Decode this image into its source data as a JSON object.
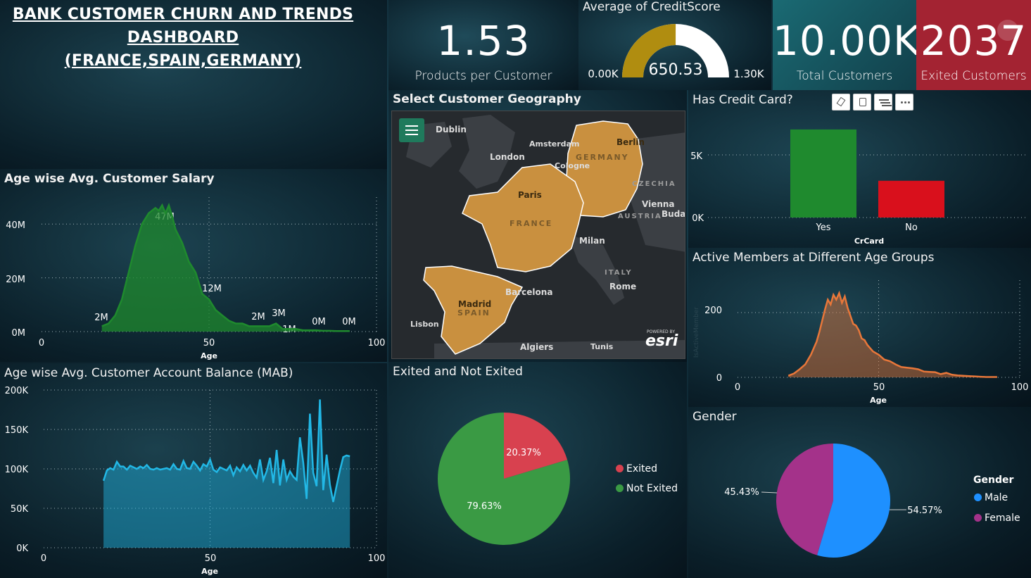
{
  "title": {
    "line1": "BANK CUSTOMER CHURN AND TRENDS ",
    "line2": "DASHBOARD",
    "line3": "(FRANCE,SPAIN,GERMANY)"
  },
  "kpis": {
    "products": {
      "value": "1.53",
      "label": "Products per Customer"
    },
    "credit": {
      "title": "Average of CreditScore",
      "value": "650.53",
      "min": "0.00K",
      "max": "1.30K",
      "fraction": 0.5004
    },
    "total": {
      "value": "10.00K",
      "label": "Total Customers"
    },
    "exited": {
      "value": "2037",
      "label": "Exited Customers"
    }
  },
  "salary_chart": {
    "title": "Age wise Avg. Customer Salary",
    "xlabel": "Age",
    "xticks": [
      "0",
      "50",
      "100"
    ],
    "yticks": [
      "40M",
      "20M",
      "0M"
    ],
    "labels": [
      "2M",
      "47M",
      "12M",
      "2M",
      "3M",
      "1M",
      "0M",
      "0M"
    ]
  },
  "balance_chart": {
    "title": "Age wise Avg. Customer Account Balance (MAB)",
    "xlabel": "Age",
    "xticks": [
      "0",
      "50",
      "100"
    ],
    "yticks": [
      "200K",
      "150K",
      "100K",
      "50K",
      "0K"
    ]
  },
  "map": {
    "title": "Select Customer Geography",
    "cities": [
      "Dublin",
      "Amsterdam",
      "Berlin",
      "London",
      "Cologne",
      "Paris",
      "Vienna",
      "Budap",
      "Milan",
      "Rome",
      "Madrid",
      "Barcelona",
      "Lisbon",
      "Algiers",
      "Tunis"
    ],
    "countries": [
      "GERMANY",
      "CZECHIA",
      "AUSTRIA",
      "FRANCE",
      "ITALY",
      "SPAIN"
    ],
    "brand": "esri",
    "powered_by": "POWERED BY"
  },
  "creditcard_chart": {
    "title": "Has Credit Card?",
    "xlabel": "CrCard",
    "yticks": [
      "5K",
      "0K"
    ],
    "categories": [
      "Yes",
      "No"
    ]
  },
  "active_chart": {
    "title": "Active Members at Different Age Groups",
    "xlabel": "Age",
    "ylabel": "IsActiveMember",
    "xticks": [
      "0",
      "50",
      "100"
    ],
    "yticks": [
      "200",
      "0"
    ]
  },
  "exited_pie": {
    "title": "Exited and Not Exited",
    "legend": [
      "Exited",
      "Not Exited"
    ],
    "labels": [
      "20.37%",
      "79.63%"
    ]
  },
  "gender_pie": {
    "title": "Gender",
    "legend_title": "Gender",
    "legend": [
      "Male",
      "Female"
    ],
    "labels": [
      "54.57%",
      "45.43%"
    ]
  },
  "colors": {
    "green": "#1f8a2e",
    "red": "#d9101c",
    "orange": "#e8773a",
    "cyan": "#22b8e6",
    "gauge": "#b08d10",
    "land": "#c9903f",
    "pie_red": "#d8414f",
    "pie_green": "#3a9a44",
    "male": "#1e90ff",
    "female": "#a4328a"
  },
  "chart_data": [
    {
      "type": "area",
      "title": "Age wise Avg. Customer Salary",
      "xlabel": "Age",
      "xlim": [
        0,
        100
      ],
      "ylim": [
        0,
        50
      ],
      "x": [
        18,
        20,
        22,
        24,
        26,
        28,
        30,
        32,
        34,
        35,
        36,
        37,
        38,
        39,
        40,
        42,
        44,
        46,
        48,
        50,
        52,
        54,
        56,
        58,
        60,
        62,
        64,
        66,
        68,
        70,
        72,
        74,
        76,
        78,
        80,
        82,
        84,
        86,
        88,
        90,
        92
      ],
      "values": [
        2,
        3,
        6,
        12,
        22,
        32,
        40,
        44,
        46,
        45,
        47,
        44,
        47,
        43,
        38,
        33,
        26,
        22,
        14,
        12,
        8,
        6,
        4,
        3,
        3,
        2,
        2,
        2,
        2,
        3,
        1,
        1,
        1,
        0.5,
        0.5,
        0.5,
        0.3,
        0.3,
        0.2,
        0.2,
        0.2
      ]
    },
    {
      "type": "area",
      "title": "Age wise Avg. Customer Account Balance (MAB)",
      "xlabel": "Age",
      "xlim": [
        0,
        100
      ],
      "ylim": [
        0,
        200
      ],
      "x": [
        18,
        19,
        20,
        21,
        22,
        23,
        24,
        25,
        26,
        27,
        28,
        29,
        30,
        31,
        32,
        33,
        34,
        35,
        36,
        37,
        38,
        39,
        40,
        41,
        42,
        43,
        44,
        45,
        46,
        47,
        48,
        49,
        50,
        51,
        52,
        53,
        54,
        55,
        56,
        57,
        58,
        59,
        60,
        61,
        62,
        63,
        64,
        65,
        66,
        67,
        68,
        69,
        70,
        71,
        72,
        73,
        74,
        75,
        76,
        77,
        78,
        79,
        80,
        81,
        82,
        83,
        84,
        85,
        86,
        87,
        88,
        89,
        90,
        91,
        92
      ],
      "values": [
        85,
        98,
        101,
        99,
        109,
        103,
        103,
        99,
        104,
        102,
        100,
        103,
        101,
        105,
        100,
        99,
        101,
        99,
        100,
        101,
        99,
        106,
        100,
        99,
        110,
        101,
        100,
        109,
        104,
        98,
        106,
        103,
        112,
        99,
        96,
        102,
        100,
        98,
        104,
        92,
        102,
        97,
        105,
        98,
        104,
        95,
        89,
        112,
        86,
        97,
        114,
        82,
        124,
        79,
        112,
        86,
        97,
        90,
        86,
        140,
        108,
        62,
        170,
        95,
        78,
        188,
        73,
        118,
        80,
        58,
        78,
        98,
        115,
        117,
        116
      ]
    },
    {
      "type": "bar",
      "title": "Has Credit Card?",
      "xlabel": "CrCard",
      "categories": [
        "Yes",
        "No"
      ],
      "values": [
        7055,
        2945
      ],
      "ylim": [
        0,
        7500
      ]
    },
    {
      "type": "area",
      "title": "Active Members at Different Age Groups",
      "xlabel": "Age",
      "ylabel": "IsActiveMember",
      "xlim": [
        0,
        100
      ],
      "ylim": [
        0,
        300
      ],
      "x": [
        18,
        20,
        22,
        24,
        26,
        28,
        29,
        30,
        31,
        32,
        33,
        34,
        35,
        36,
        37,
        38,
        39,
        40,
        41,
        42,
        43,
        44,
        45,
        46,
        48,
        50,
        52,
        54,
        56,
        58,
        60,
        62,
        64,
        66,
        68,
        70,
        72,
        74,
        76,
        78,
        80,
        82,
        84,
        86,
        88,
        90,
        92
      ],
      "values": [
        5,
        12,
        25,
        40,
        70,
        110,
        140,
        175,
        210,
        240,
        225,
        255,
        240,
        260,
        230,
        250,
        215,
        190,
        165,
        160,
        145,
        120,
        115,
        100,
        80,
        70,
        55,
        50,
        40,
        32,
        30,
        28,
        25,
        18,
        17,
        16,
        10,
        14,
        8,
        6,
        5,
        4,
        3,
        2,
        1,
        1,
        1
      ]
    },
    {
      "type": "pie",
      "title": "Exited and Not Exited",
      "categories": [
        "Exited",
        "Not Exited"
      ],
      "values": [
        20.37,
        79.63
      ]
    },
    {
      "type": "pie",
      "title": "Gender",
      "categories": [
        "Male",
        "Female"
      ],
      "values": [
        54.57,
        45.43
      ]
    }
  ]
}
